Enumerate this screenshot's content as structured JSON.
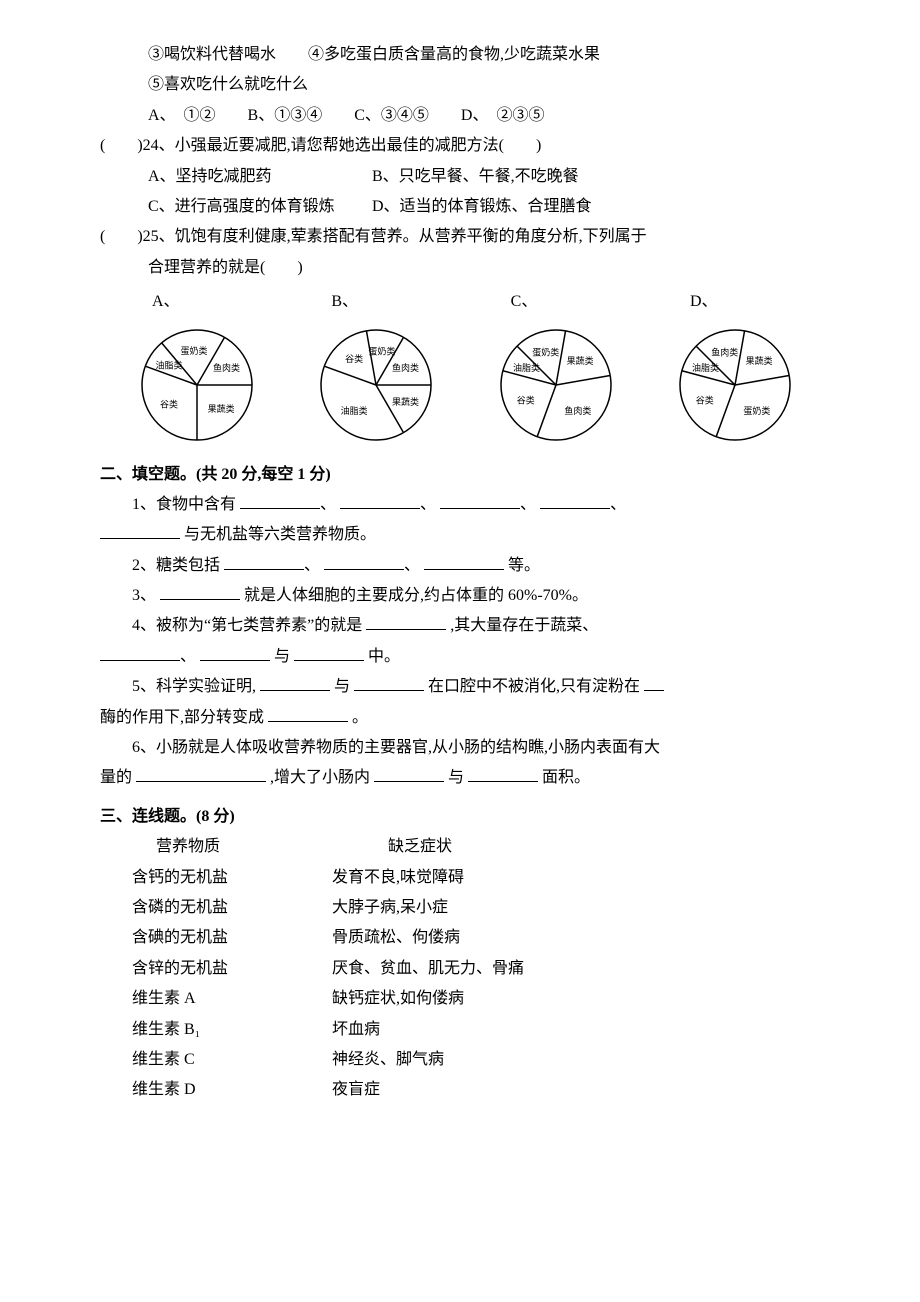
{
  "q23_partial": {
    "line1": "③喝饮料代替喝水　　④多吃蛋白质含量高的食物,少吃蔬菜水果",
    "line2": "⑤喜欢吃什么就吃什么",
    "options": "A、　①②　　B、①③④　　C、③④⑤　　D、　②③⑤"
  },
  "q24": {
    "stem": "(　　)24、小强最近要减肥,请您帮她选出最佳的减肥方法(　　)",
    "optA": "A、坚持吃减肥药",
    "optB": "B、只吃早餐、午餐,不吃晚餐",
    "optC": "C、进行高强度的体育锻炼",
    "optD": "D、适当的体育锻炼、合理膳食"
  },
  "q25": {
    "stem1": "(　　)25、饥饱有度利健康,荤素搭配有营养。从营养平衡的角度分析,下列属于",
    "stem2": "合理营养的就是(　　)",
    "labels": [
      "A、",
      "B、",
      "C、",
      "D、"
    ],
    "charts": [
      {
        "slices": [
          {
            "label": "鱼肉类",
            "start": -60,
            "end": 0
          },
          {
            "label": "果蔬类",
            "start": 0,
            "end": 90
          },
          {
            "label": "谷类",
            "start": 90,
            "end": 200
          },
          {
            "label": "油脂类",
            "start": 200,
            "end": 230
          },
          {
            "label": "蛋奶类",
            "start": 230,
            "end": 300
          }
        ]
      },
      {
        "slices": [
          {
            "label": "鱼肉类",
            "start": -60,
            "end": 0
          },
          {
            "label": "果蔬类",
            "start": 0,
            "end": 60
          },
          {
            "label": "油脂类",
            "start": 60,
            "end": 200
          },
          {
            "label": "谷类",
            "start": 200,
            "end": 260
          },
          {
            "label": "蛋奶类",
            "start": 260,
            "end": 300
          }
        ]
      },
      {
        "slices": [
          {
            "label": "果蔬类",
            "start": -80,
            "end": -10
          },
          {
            "label": "鱼肉类",
            "start": -10,
            "end": 110
          },
          {
            "label": "谷类",
            "start": 110,
            "end": 195
          },
          {
            "label": "油脂类",
            "start": 195,
            "end": 225
          },
          {
            "label": "蛋奶类",
            "start": 225,
            "end": 280
          }
        ]
      },
      {
        "slices": [
          {
            "label": "果蔬类",
            "start": -80,
            "end": -10
          },
          {
            "label": "蛋奶类",
            "start": -10,
            "end": 110
          },
          {
            "label": "谷类",
            "start": 110,
            "end": 195
          },
          {
            "label": "油脂类",
            "start": 195,
            "end": 225
          },
          {
            "label": "鱼肉类",
            "start": 225,
            "end": 280
          }
        ]
      }
    ],
    "chart_style": {
      "radius": 55,
      "stroke": "#000000",
      "fill": "#ffffff",
      "label_fontsize": 9,
      "svg_size": 130
    }
  },
  "section2": {
    "title": "二、填空题。(共 20 分,每空 1 分)",
    "q1a": "1、食物中含有",
    "q1b": "与无机盐等六类营养物质。",
    "q2a": "2、糖类包括",
    "q2b": "等。",
    "q3a": "3、",
    "q3b": "就是人体细胞的主要成分,约占体重的 60%-70%。",
    "q4a": "4、被称为“第七类营养素”的就是",
    "q4b": ",其大量存在于蔬菜、",
    "q4c": "与",
    "q4d": "中。",
    "q5a": "5、科学实验证明,",
    "q5b": "与",
    "q5c": "在口腔中不被消化,只有淀粉在",
    "q5d": "酶的作用下,部分转变成",
    "q5e": "。",
    "q6a": "6、小肠就是人体吸收营养物质的主要器官,从小肠的结构瞧,小肠内表面有大",
    "q6b": "量的",
    "q6c": ",增大了小肠内",
    "q6d": "与",
    "q6e": "面积。"
  },
  "section3": {
    "title": "三、连线题。(8 分)",
    "headL": "营养物质",
    "headR": "缺乏症状",
    "rows": [
      {
        "l": "含钙的无机盐",
        "r": "发育不良,味觉障碍"
      },
      {
        "l": "含磷的无机盐",
        "r": "大脖子病,呆小症"
      },
      {
        "l": "含碘的无机盐",
        "r": "骨质疏松、佝偻病"
      },
      {
        "l": "含锌的无机盐",
        "r": "厌食、贫血、肌无力、骨痛"
      },
      {
        "l": "维生素 A",
        "r": "缺钙症状,如佝偻病"
      },
      {
        "l": "维生素 B₁",
        "r": "坏血病"
      },
      {
        "l": "维生素 C",
        "r": "神经炎、脚气病"
      },
      {
        "l": "维生素 D",
        "r": "夜盲症"
      }
    ]
  }
}
